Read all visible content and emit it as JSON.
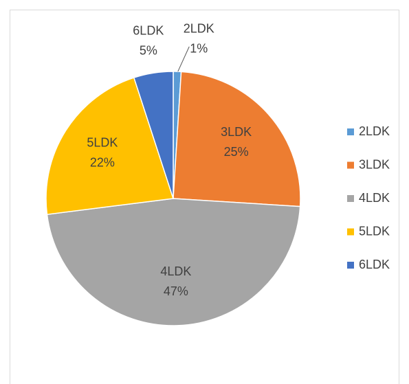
{
  "chart_data": {
    "type": "pie",
    "categories": [
      "2LDK",
      "3LDK",
      "4LDK",
      "5LDK",
      "6LDK"
    ],
    "values": [
      1,
      25,
      47,
      22,
      5
    ],
    "value_labels": [
      "1%",
      "25%",
      "47%",
      "22%",
      "5%"
    ],
    "colors": [
      "#5b9bd5",
      "#ed7d31",
      "#a5a5a5",
      "#ffc000",
      "#4472c4"
    ],
    "legend": "right"
  }
}
